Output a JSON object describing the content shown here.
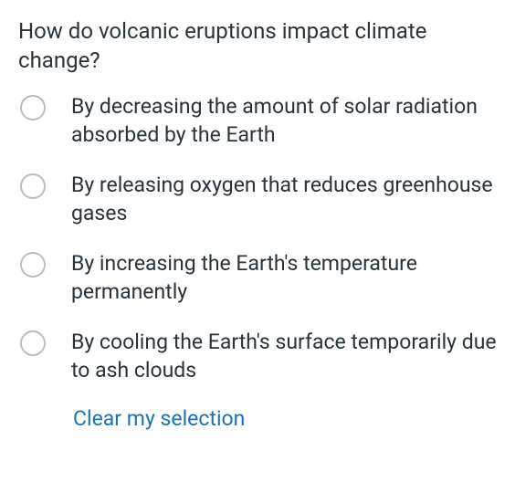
{
  "question": {
    "text": "How do volcanic eruptions impact climate change?",
    "text_color": "#2a3339",
    "font_size": 24
  },
  "options": [
    {
      "label": "By decreasing the amount of solar radiation absorbed by the Earth",
      "selected": false
    },
    {
      "label": "By releasing oxygen that reduces greenhouse gases",
      "selected": false
    },
    {
      "label": "By increasing the Earth's temperature permanently",
      "selected": false
    },
    {
      "label": "By cooling the Earth's surface temporarily due to ash clouds",
      "selected": false
    }
  ],
  "clear_selection_label": "Clear my selection",
  "styling": {
    "option_text_color": "#2a3339",
    "option_font_size": 23,
    "radio_border_color": "#b5bec3",
    "radio_size": 28,
    "link_color": "#1a73b7",
    "background_color": "#ffffff"
  }
}
